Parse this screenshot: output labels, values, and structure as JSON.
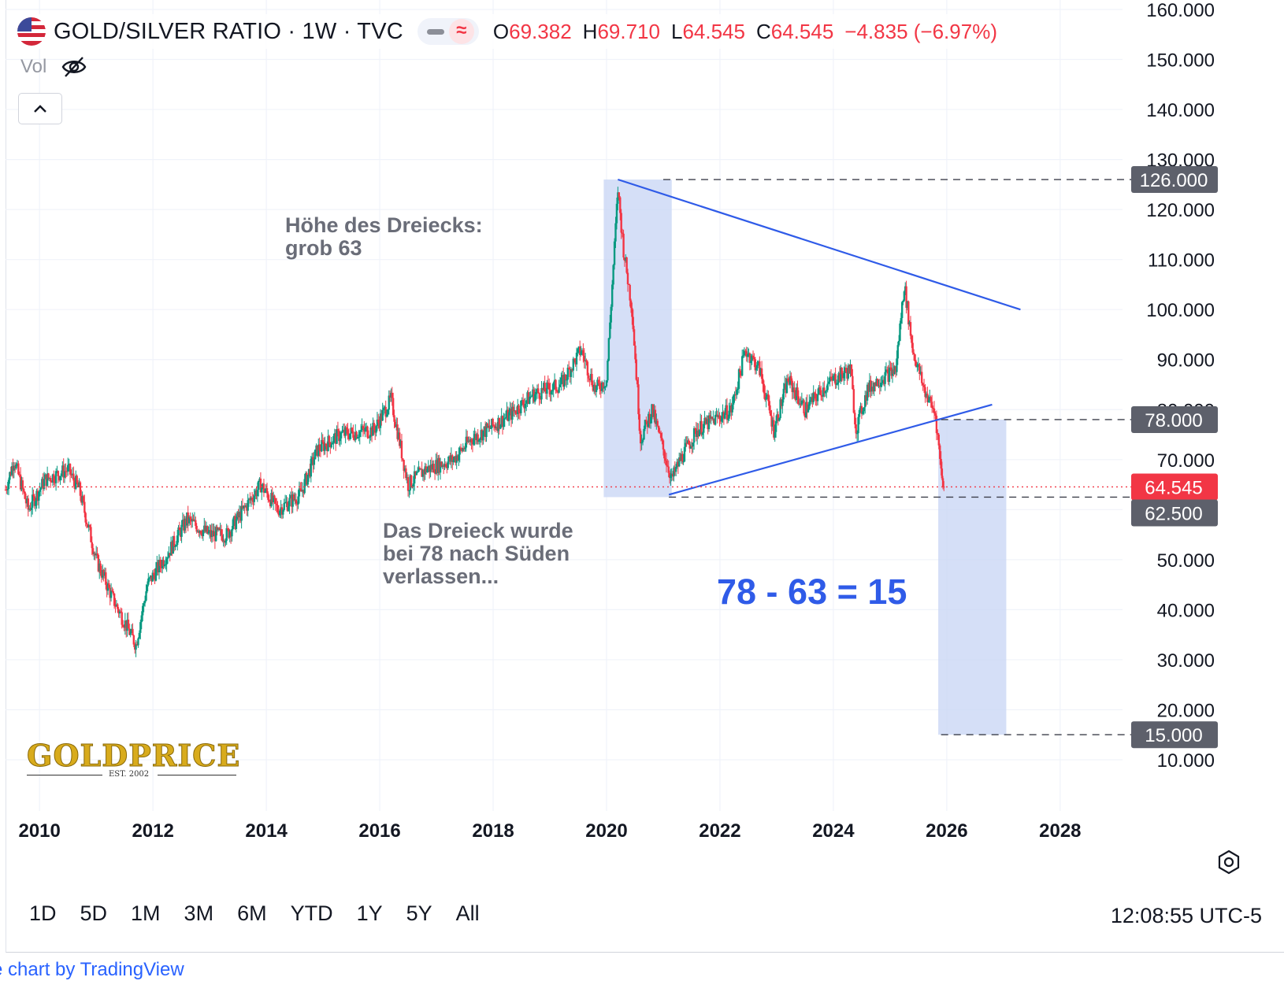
{
  "header": {
    "title": "GOLD/SILVER RATIO · 1W · TVC",
    "flag_icon": "us-flag-icon",
    "status_icon": "market-status-icon",
    "wave_icon": "delayed-data-icon",
    "ohlc": [
      {
        "label": "O",
        "value": "69.382"
      },
      {
        "label": "H",
        "value": "69.710"
      },
      {
        "label": "L",
        "value": "64.545"
      },
      {
        "label": "C",
        "value": "64.545"
      }
    ],
    "change": "−4.835 (−6.97%)"
  },
  "volume": {
    "label": "Vol",
    "icon": "eye-off-icon"
  },
  "collapse_icon": "chevron-up-icon",
  "annotations": {
    "height_note": [
      "Höhe des Dreiecks:",
      "grob 63"
    ],
    "break_note": [
      "Das Dreieck wurde",
      "bei 78 nach Süden",
      "verlassen..."
    ],
    "equation": "78 - 63 = 15"
  },
  "logo": {
    "text": "GOLDPRICE",
    "est": "EST. 2002"
  },
  "timeframes": [
    "1D",
    "5D",
    "1M",
    "3M",
    "6M",
    "YTD",
    "1Y",
    "5Y",
    "All"
  ],
  "clock": "12:08:55 UTC-5",
  "credit": "e chart by TradingView",
  "colors": {
    "up": "#089981",
    "down": "#f23645",
    "trend_line": "#2f5be8",
    "box_fill": "#c9d6f5",
    "label_bg": "#5d606b",
    "price_label": "#f23645"
  },
  "chart_data": {
    "type": "candlestick",
    "title": "GOLD/SILVER RATIO · 1W · TVC",
    "y_range": [
      0,
      160
    ],
    "y_ticks": [
      "10.000",
      "20.000",
      "30.000",
      "40.000",
      "50.000",
      "60.000",
      "70.000",
      "80.000",
      "90.000",
      "100.000",
      "110.000",
      "120.000",
      "130.000",
      "140.000",
      "150.000",
      "160.000"
    ],
    "x_range": [
      2009.4,
      2029.1
    ],
    "x_ticks": [
      "2010",
      "2012",
      "2014",
      "2016",
      "2018",
      "2020",
      "2022",
      "2024",
      "2026",
      "2028"
    ],
    "last_price": 64.545,
    "price_key_points": [
      [
        2009.4,
        64
      ],
      [
        2009.55,
        70
      ],
      [
        2009.8,
        60
      ],
      [
        2010.1,
        66
      ],
      [
        2010.5,
        68
      ],
      [
        2010.7,
        64
      ],
      [
        2011.0,
        50
      ],
      [
        2011.3,
        42
      ],
      [
        2011.7,
        33
      ],
      [
        2011.9,
        45
      ],
      [
        2012.3,
        52
      ],
      [
        2012.6,
        58
      ],
      [
        2013.0,
        55
      ],
      [
        2013.3,
        55
      ],
      [
        2013.6,
        60
      ],
      [
        2013.9,
        65
      ],
      [
        2014.2,
        60
      ],
      [
        2014.6,
        63
      ],
      [
        2014.9,
        72
      ],
      [
        2015.3,
        75
      ],
      [
        2015.9,
        76
      ],
      [
        2016.2,
        82
      ],
      [
        2016.5,
        65
      ],
      [
        2016.8,
        68
      ],
      [
        2017.3,
        70
      ],
      [
        2017.6,
        74
      ],
      [
        2017.9,
        76
      ],
      [
        2018.3,
        79
      ],
      [
        2018.7,
        83
      ],
      [
        2019.2,
        85
      ],
      [
        2019.55,
        92
      ],
      [
        2019.8,
        84
      ],
      [
        2020.0,
        86
      ],
      [
        2020.2,
        124
      ],
      [
        2020.3,
        112
      ],
      [
        2020.45,
        100
      ],
      [
        2020.6,
        74
      ],
      [
        2020.8,
        80
      ],
      [
        2021.0,
        72
      ],
      [
        2021.15,
        66
      ],
      [
        2021.3,
        70
      ],
      [
        2021.6,
        76
      ],
      [
        2021.9,
        78
      ],
      [
        2022.2,
        80
      ],
      [
        2022.45,
        92
      ],
      [
        2022.7,
        88
      ],
      [
        2022.95,
        76
      ],
      [
        2023.2,
        86
      ],
      [
        2023.5,
        80
      ],
      [
        2023.8,
        84
      ],
      [
        2024.0,
        86
      ],
      [
        2024.3,
        88
      ],
      [
        2024.4,
        76
      ],
      [
        2024.6,
        84
      ],
      [
        2024.8,
        86
      ],
      [
        2025.1,
        88
      ],
      [
        2025.25,
        105
      ],
      [
        2025.4,
        92
      ],
      [
        2025.6,
        84
      ],
      [
        2025.8,
        79
      ],
      [
        2025.9,
        68
      ],
      [
        2025.95,
        64.545
      ]
    ],
    "overlays": {
      "price_labels": [
        "126.000",
        "78.000",
        "64.545",
        "62.500",
        "15.000"
      ],
      "resistance_line": [
        [
          2020.2,
          126
        ],
        [
          2027.3,
          100
        ]
      ],
      "support_line": [
        [
          2021.1,
          63
        ],
        [
          2026.8,
          81
        ]
      ],
      "dashed_levels": [
        {
          "value": 126,
          "from": 2021.0
        },
        {
          "value": 78,
          "from": 2025.9
        },
        {
          "value": 62.5,
          "from": 2021.1
        },
        {
          "value": 15,
          "from": 2025.9
        }
      ],
      "current_price_dotted": 64.545,
      "boxes": [
        {
          "x": [
            2019.95,
            2021.15
          ],
          "y": [
            62.5,
            126
          ]
        },
        {
          "x": [
            2025.85,
            2027.05
          ],
          "y": [
            15,
            78
          ]
        }
      ]
    }
  }
}
